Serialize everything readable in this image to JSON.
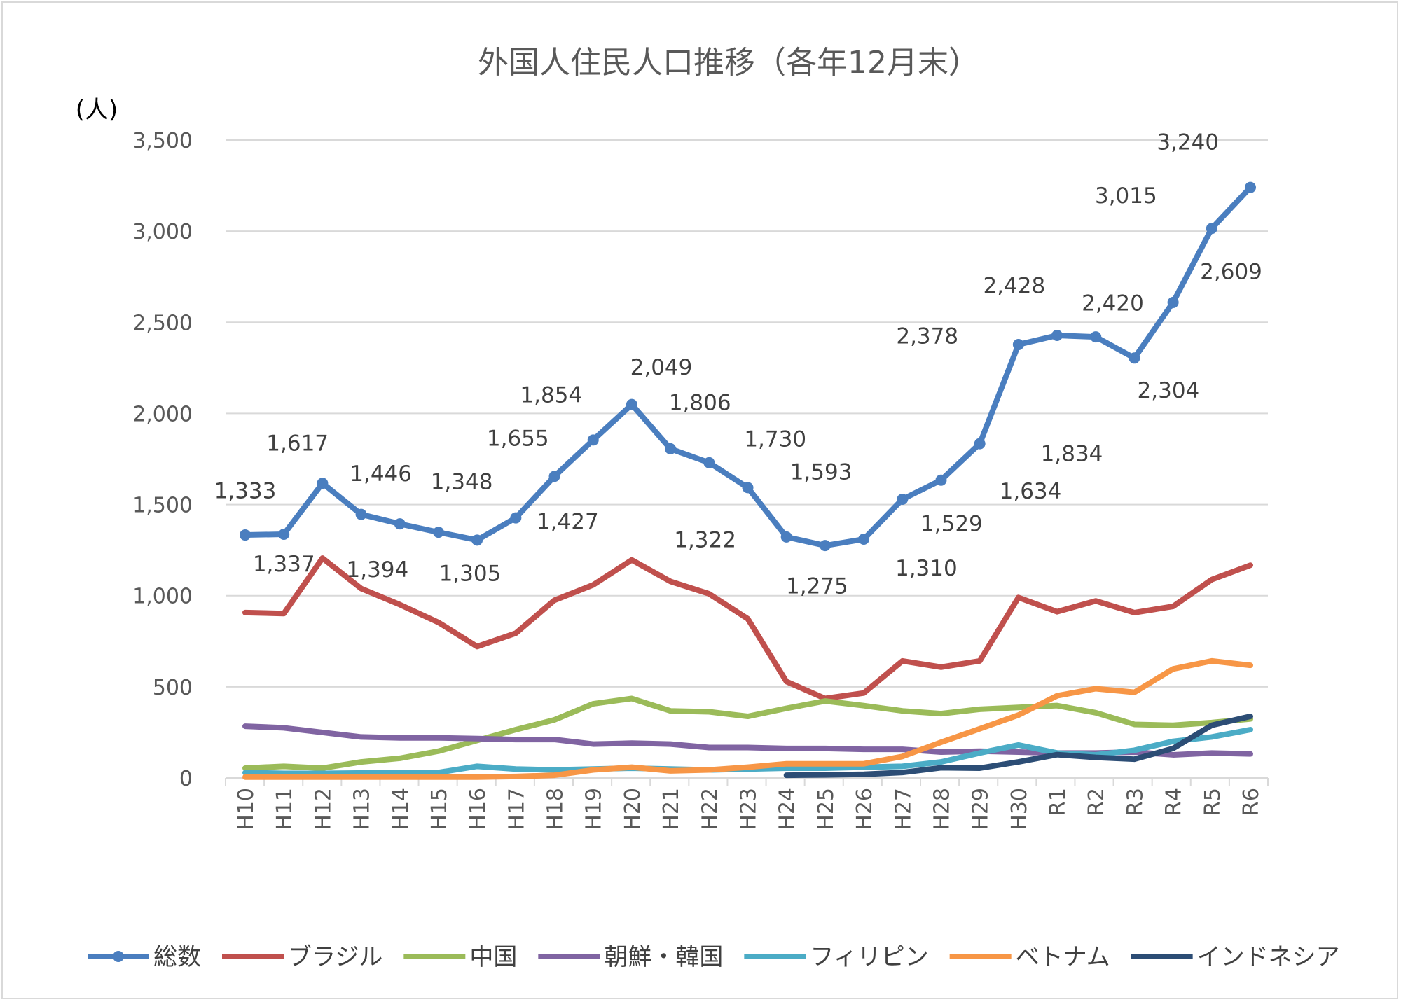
{
  "chart_data": {
    "type": "line",
    "title": "外国人住民人口推移（各年12月末）",
    "ylabel": "(人)",
    "xlabel": "",
    "ylim": [
      0,
      3500
    ],
    "yticks": [
      "0",
      "500",
      "1,000",
      "1,500",
      "2,000",
      "2,500",
      "3,000",
      "3,500"
    ],
    "ytick_values": [
      0,
      500,
      1000,
      1500,
      2000,
      2500,
      3000,
      3500
    ],
    "grid": true,
    "legend": "bottom",
    "categories": [
      "H10",
      "H11",
      "H12",
      "H13",
      "H14",
      "H15",
      "H16",
      "H17",
      "H18",
      "H19",
      "H20",
      "H21",
      "H22",
      "H23",
      "H24",
      "H25",
      "H26",
      "H27",
      "H28",
      "H29",
      "H30",
      "R1",
      "R2",
      "R3",
      "R4",
      "R5",
      "R6"
    ],
    "series": [
      {
        "name": "総数",
        "color": "#4A7EBF",
        "markers": true,
        "values": [
          1333,
          1337,
          1617,
          1446,
          1394,
          1348,
          1305,
          1427,
          1655,
          1854,
          2049,
          1806,
          1730,
          1593,
          1322,
          1275,
          1310,
          1529,
          1634,
          1834,
          2378,
          2428,
          2420,
          2304,
          2609,
          3015,
          3240
        ],
        "labels": [
          "1,333",
          "1,337",
          "1,617",
          "1,446",
          "1,394",
          "1,348",
          "1,305",
          "1,427",
          "1,655",
          "1,854",
          "2,049",
          "1,806",
          "1,730",
          "1,593",
          "1,322",
          "1,275",
          "1,310",
          "1,529",
          "1,634",
          "1,834",
          "2,378",
          "2,428",
          "2,420",
          "2,304",
          "2,609",
          "3,015",
          "3,240"
        ]
      },
      {
        "name": "ブラジル",
        "color": "#C0504D",
        "values": [
          907,
          902,
          1206,
          1039,
          951,
          853,
          721,
          794,
          975,
          1059,
          1196,
          1078,
          1010,
          873,
          529,
          436,
          466,
          642,
          608,
          642,
          990,
          912,
          971,
          907,
          941,
          1088,
          1167
        ]
      },
      {
        "name": "中国",
        "color": "#9BBB59",
        "values": [
          54,
          64,
          54,
          88,
          108,
          147,
          206,
          265,
          319,
          407,
          436,
          368,
          363,
          338,
          382,
          422,
          397,
          368,
          353,
          377,
          387,
          397,
          358,
          294,
          289,
          304,
          324
        ]
      },
      {
        "name": "朝鮮・韓国",
        "color": "#8064A2",
        "values": [
          284,
          275,
          250,
          225,
          220,
          220,
          216,
          211,
          211,
          186,
          191,
          186,
          167,
          167,
          162,
          162,
          157,
          157,
          142,
          147,
          142,
          137,
          137,
          142,
          127,
          137,
          132
        ]
      },
      {
        "name": "フィリピン",
        "color": "#4BACC6",
        "values": [
          29,
          25,
          25,
          27,
          28,
          30,
          64,
          49,
          44,
          49,
          54,
          49,
          44,
          49,
          54,
          54,
          59,
          64,
          88,
          137,
          181,
          137,
          127,
          152,
          201,
          225,
          265
        ]
      },
      {
        "name": "ベトナム",
        "color": "#F79646",
        "values": [
          5,
          5,
          5,
          5,
          5,
          5,
          5,
          8,
          15,
          44,
          59,
          39,
          44,
          59,
          78,
          78,
          78,
          118,
          196,
          270,
          345,
          451,
          490,
          470,
          598,
          642,
          618
        ]
      },
      {
        "name": "インドネシア",
        "color": "#2C4D75",
        "values": [
          null,
          null,
          null,
          null,
          null,
          null,
          null,
          null,
          null,
          null,
          null,
          null,
          null,
          null,
          15,
          17,
          20,
          30,
          56,
          54,
          88,
          128,
          113,
          103,
          162,
          289,
          338
        ]
      }
    ]
  }
}
